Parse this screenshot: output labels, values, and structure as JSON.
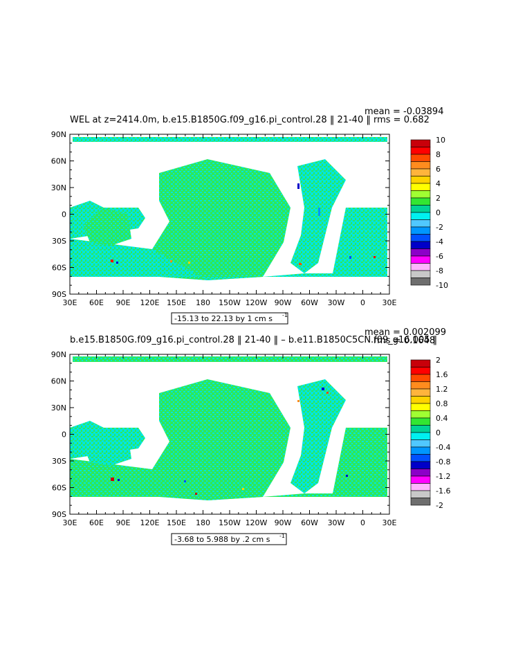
{
  "panels": [
    {
      "title": "WEL at z=2414.0m, b.e15.B1850G.f09_g16.pi_control.28 ‖ 21-40 ‖",
      "mean_label": "mean = -0.03894",
      "rms_label": "rms = 0.682",
      "range_label": "-15.13 to 22.13 by 1 cm s",
      "range_unit_exp": "-1",
      "colorbar": {
        "labels": [
          "10",
          "8",
          "6",
          "4",
          "2",
          "0",
          "-2",
          "-4",
          "-6",
          "-8",
          "-10"
        ],
        "colors": [
          "#c8000a",
          "#ff0000",
          "#ff4a00",
          "#ff8c1e",
          "#ffb43c",
          "#ffd200",
          "#ffff00",
          "#a0ff32",
          "#32e632",
          "#00d296",
          "#00f0f0",
          "#50c8ff",
          "#0096ff",
          "#0050ff",
          "#0000c8",
          "#8c00c8",
          "#ff00ff",
          "#ffb4ff",
          "#c8c8c8",
          "#6e6e6e"
        ]
      }
    },
    {
      "title": "b.e15.B1850G.f09_g16.pi_control.28 ‖ 21-40 ‖ – b.e11.B1850C5CN.f09_g16.005 ‖",
      "mean_label": "mean = 0.002099",
      "rms_label": "rms = 0.1648",
      "range_label": "-3.68 to 5.988 by .2 cm s",
      "range_unit_exp": "-1",
      "colorbar": {
        "labels": [
          "2",
          "1.6",
          "1.2",
          "0.8",
          "0.4",
          "0",
          "-0.4",
          "-0.8",
          "-1.2",
          "-1.6",
          "-2"
        ],
        "colors": [
          "#c8000a",
          "#ff0000",
          "#ff4a00",
          "#ff8c1e",
          "#ffb43c",
          "#ffd200",
          "#ffff00",
          "#a0ff32",
          "#32e632",
          "#00d296",
          "#00f0f0",
          "#50c8ff",
          "#0096ff",
          "#0050ff",
          "#0000c8",
          "#8c00c8",
          "#ff00ff",
          "#ffb4ff",
          "#c8c8c8",
          "#6e6e6e"
        ]
      }
    }
  ],
  "axes": {
    "lon_labels": [
      "30E",
      "60E",
      "90E",
      "120E",
      "150E",
      "180",
      "150W",
      "120W",
      "90W",
      "60W",
      "30W",
      "0",
      "30E"
    ],
    "lat_labels": [
      "90N",
      "60N",
      "30N",
      "0",
      "30S",
      "60S",
      "90S"
    ]
  },
  "colors": {
    "ocean_main": "#00e6dc",
    "ocean_alt": "#2ee85a",
    "land": "#ffffff"
  }
}
